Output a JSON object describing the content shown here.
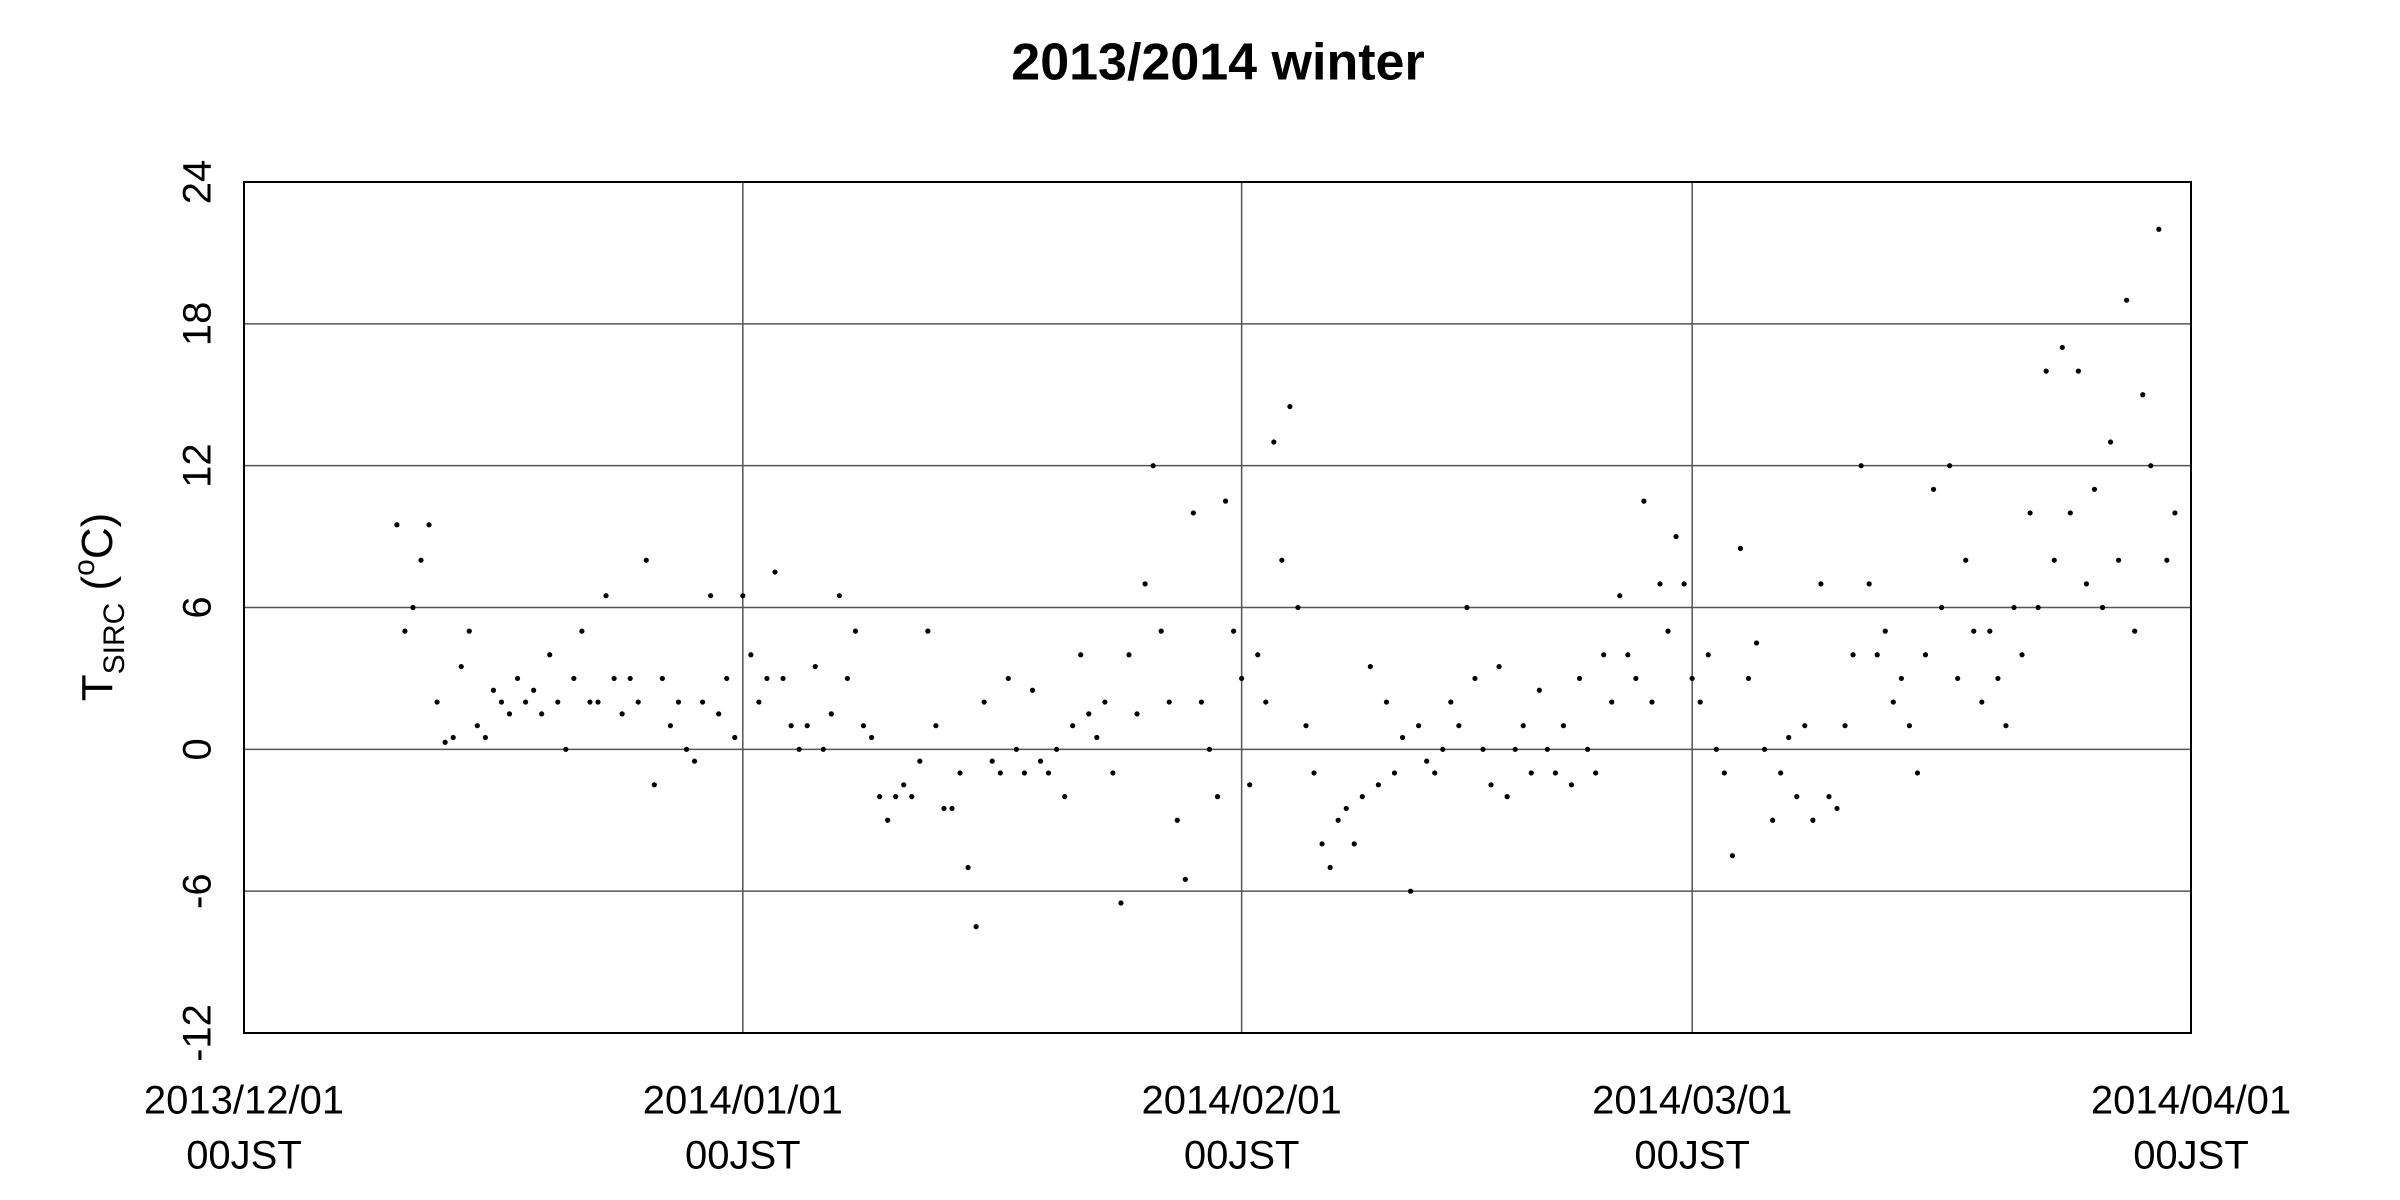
{
  "chart_data": {
    "type": "scatter",
    "title": "2013/2014 winter",
    "ylabel": [
      "T",
      "SIRC",
      " (",
      "o",
      "C)"
    ],
    "color": "#000000",
    "grid": true,
    "xlim": [
      "2013-12-01 00:00",
      "2014-04-01 00:00"
    ],
    "xticks": [
      {
        "value": "2013-12-01 00:00",
        "label": [
          "2013/12/01",
          "00JST"
        ]
      },
      {
        "value": "2014-01-01 00:00",
        "label": [
          "2014/01/01",
          "00JST"
        ]
      },
      {
        "value": "2014-02-01 00:00",
        "label": [
          "2014/02/01",
          "00JST"
        ]
      },
      {
        "value": "2014-03-01 00:00",
        "label": [
          "2014/03/01",
          "00JST"
        ]
      },
      {
        "value": "2014-04-01 00:00",
        "label": [
          "2014/04/01",
          "00JST"
        ]
      }
    ],
    "ylim": [
      -12,
      24
    ],
    "yticks": [
      -12,
      -6,
      0,
      6,
      12,
      18,
      24
    ],
    "x": [
      "2013-12-10 12:00",
      "2013-12-11 00:00",
      "2013-12-11 12:00",
      "2013-12-12 00:00",
      "2013-12-12 12:00",
      "2013-12-13 00:00",
      "2013-12-13 12:00",
      "2013-12-14 00:00",
      "2013-12-14 12:00",
      "2013-12-15 00:00",
      "2013-12-15 12:00",
      "2013-12-16 00:00",
      "2013-12-16 12:00",
      "2013-12-17 00:00",
      "2013-12-17 12:00",
      "2013-12-18 00:00",
      "2013-12-18 12:00",
      "2013-12-19 00:00",
      "2013-12-19 12:00",
      "2013-12-20 00:00",
      "2013-12-20 12:00",
      "2013-12-21 00:00",
      "2013-12-21 12:00",
      "2013-12-22 00:00",
      "2013-12-22 12:00",
      "2013-12-23 00:00",
      "2013-12-23 12:00",
      "2013-12-24 00:00",
      "2013-12-24 12:00",
      "2013-12-25 00:00",
      "2013-12-25 12:00",
      "2013-12-26 00:00",
      "2013-12-26 12:00",
      "2013-12-27 00:00",
      "2013-12-27 12:00",
      "2013-12-28 00:00",
      "2013-12-28 12:00",
      "2013-12-29 00:00",
      "2013-12-29 12:00",
      "2013-12-30 00:00",
      "2013-12-30 12:00",
      "2013-12-31 00:00",
      "2013-12-31 12:00",
      "2014-01-01 00:00",
      "2014-01-01 12:00",
      "2014-01-02 00:00",
      "2014-01-02 12:00",
      "2014-01-03 00:00",
      "2014-01-03 12:00",
      "2014-01-04 00:00",
      "2014-01-04 12:00",
      "2014-01-05 00:00",
      "2014-01-05 12:00",
      "2014-01-06 00:00",
      "2014-01-06 12:00",
      "2014-01-07 00:00",
      "2014-01-07 12:00",
      "2014-01-08 00:00",
      "2014-01-08 12:00",
      "2014-01-09 00:00",
      "2014-01-09 12:00",
      "2014-01-10 00:00",
      "2014-01-10 12:00",
      "2014-01-11 00:00",
      "2014-01-11 12:00",
      "2014-01-12 00:00",
      "2014-01-12 12:00",
      "2014-01-13 00:00",
      "2014-01-13 12:00",
      "2014-01-14 00:00",
      "2014-01-14 12:00",
      "2014-01-15 00:00",
      "2014-01-15 12:00",
      "2014-01-16 00:00",
      "2014-01-16 12:00",
      "2014-01-17 00:00",
      "2014-01-17 12:00",
      "2014-01-18 00:00",
      "2014-01-18 12:00",
      "2014-01-19 00:00",
      "2014-01-19 12:00",
      "2014-01-20 00:00",
      "2014-01-20 12:00",
      "2014-01-21 00:00",
      "2014-01-21 12:00",
      "2014-01-22 00:00",
      "2014-01-22 12:00",
      "2014-01-23 00:00",
      "2014-01-23 12:00",
      "2014-01-24 00:00",
      "2014-01-24 12:00",
      "2014-01-25 00:00",
      "2014-01-25 12:00",
      "2014-01-26 00:00",
      "2014-01-26 12:00",
      "2014-01-27 00:00",
      "2014-01-27 12:00",
      "2014-01-28 00:00",
      "2014-01-28 12:00",
      "2014-01-29 00:00",
      "2014-01-29 12:00",
      "2014-01-30 00:00",
      "2014-01-30 12:00",
      "2014-01-31 00:00",
      "2014-01-31 12:00",
      "2014-02-01 00:00",
      "2014-02-01 12:00",
      "2014-02-02 00:00",
      "2014-02-02 12:00",
      "2014-02-03 00:00",
      "2014-02-03 12:00",
      "2014-02-04 00:00",
      "2014-02-04 12:00",
      "2014-02-05 00:00",
      "2014-02-05 12:00",
      "2014-02-06 00:00",
      "2014-02-06 12:00",
      "2014-02-07 00:00",
      "2014-02-07 12:00",
      "2014-02-08 00:00",
      "2014-02-08 12:00",
      "2014-02-09 00:00",
      "2014-02-09 12:00",
      "2014-02-10 00:00",
      "2014-02-10 12:00",
      "2014-02-11 00:00",
      "2014-02-11 12:00",
      "2014-02-12 00:00",
      "2014-02-12 12:00",
      "2014-02-13 00:00",
      "2014-02-13 12:00",
      "2014-02-14 00:00",
      "2014-02-14 12:00",
      "2014-02-15 00:00",
      "2014-02-15 12:00",
      "2014-02-16 00:00",
      "2014-02-16 12:00",
      "2014-02-17 00:00",
      "2014-02-17 12:00",
      "2014-02-18 00:00",
      "2014-02-18 12:00",
      "2014-02-19 00:00",
      "2014-02-19 12:00",
      "2014-02-20 00:00",
      "2014-02-20 12:00",
      "2014-02-21 00:00",
      "2014-02-21 12:00",
      "2014-02-22 00:00",
      "2014-02-22 12:00",
      "2014-02-23 00:00",
      "2014-02-23 12:00",
      "2014-02-24 00:00",
      "2014-02-24 12:00",
      "2014-02-25 00:00",
      "2014-02-25 12:00",
      "2014-02-26 00:00",
      "2014-02-26 12:00",
      "2014-02-27 00:00",
      "2014-02-27 12:00",
      "2014-02-28 00:00",
      "2014-02-28 12:00",
      "2014-03-01 00:00",
      "2014-03-01 12:00",
      "2014-03-02 00:00",
      "2014-03-02 12:00",
      "2014-03-03 00:00",
      "2014-03-03 12:00",
      "2014-03-04 00:00",
      "2014-03-04 12:00",
      "2014-03-05 00:00",
      "2014-03-05 12:00",
      "2014-03-06 00:00",
      "2014-03-06 12:00",
      "2014-03-07 00:00",
      "2014-03-07 12:00",
      "2014-03-08 00:00",
      "2014-03-08 12:00",
      "2014-03-09 00:00",
      "2014-03-09 12:00",
      "2014-03-10 00:00",
      "2014-03-10 12:00",
      "2014-03-11 00:00",
      "2014-03-11 12:00",
      "2014-03-12 00:00",
      "2014-03-12 12:00",
      "2014-03-13 00:00",
      "2014-03-13 12:00",
      "2014-03-14 00:00",
      "2014-03-14 12:00",
      "2014-03-15 00:00",
      "2014-03-15 12:00",
      "2014-03-16 00:00",
      "2014-03-16 12:00",
      "2014-03-17 00:00",
      "2014-03-17 12:00",
      "2014-03-18 00:00",
      "2014-03-18 12:00",
      "2014-03-19 00:00",
      "2014-03-19 12:00",
      "2014-03-20 00:00",
      "2014-03-20 12:00",
      "2014-03-21 00:00",
      "2014-03-21 12:00",
      "2014-03-22 00:00",
      "2014-03-22 12:00",
      "2014-03-23 00:00",
      "2014-03-23 12:00",
      "2014-03-24 00:00",
      "2014-03-24 12:00",
      "2014-03-25 00:00",
      "2014-03-25 12:00",
      "2014-03-26 00:00",
      "2014-03-26 12:00",
      "2014-03-27 00:00",
      "2014-03-27 12:00",
      "2014-03-28 00:00",
      "2014-03-28 12:00",
      "2014-03-29 00:00",
      "2014-03-29 12:00",
      "2014-03-30 00:00",
      "2014-03-30 12:00",
      "2014-03-31 00:00"
    ],
    "values": [
      9.5,
      5,
      6,
      8,
      9.5,
      2,
      0.3,
      0.5,
      3.5,
      5,
      1,
      0.5,
      2.5,
      2,
      1.5,
      3,
      2,
      2.5,
      1.5,
      4,
      2,
      0,
      3,
      5,
      2,
      2,
      6.5,
      3,
      1.5,
      3,
      2,
      8,
      -1.5,
      3,
      1,
      2,
      0,
      -0.5,
      2,
      6.5,
      1.5,
      3,
      0.5,
      6.5,
      4,
      2,
      3,
      7.5,
      3,
      1,
      0,
      1,
      3.5,
      0,
      1.5,
      6.5,
      3,
      5,
      1,
      0.5,
      -2,
      -3,
      -2,
      -1.5,
      -2,
      -0.5,
      5,
      1,
      -2.5,
      -2.5,
      -1,
      -5,
      -7.5,
      2,
      -0.5,
      -1,
      3,
      0,
      -1,
      2.5,
      -0.5,
      -1,
      0,
      -2,
      1,
      4,
      1.5,
      0.5,
      2,
      -1,
      -6.5,
      4,
      1.5,
      7,
      12,
      5,
      2,
      -3,
      -5.5,
      10,
      2,
      0,
      -2,
      10.5,
      5,
      3,
      -1.5,
      4,
      2,
      13,
      8,
      14.5,
      6,
      1,
      -1,
      -4,
      -5,
      -3,
      -2.5,
      -4,
      -2,
      3.5,
      -1.5,
      2,
      -1,
      0.5,
      -6,
      1,
      -0.5,
      -1,
      0,
      2,
      1,
      6,
      3,
      0,
      -1.5,
      3.5,
      -2,
      0,
      1,
      -1,
      2.5,
      0,
      -1,
      1,
      -1.5,
      3,
      0,
      -1,
      4,
      2,
      6.5,
      4,
      3,
      10.5,
      2,
      7,
      5,
      9,
      7,
      3,
      2,
      4,
      0,
      -1,
      -4.5,
      8.5,
      3,
      4.5,
      0,
      -3,
      -1,
      0.5,
      -2,
      1,
      -3,
      7,
      -2,
      -2.5,
      1,
      4,
      12,
      7,
      4,
      5,
      2,
      3,
      1,
      -1,
      4,
      11,
      6,
      12,
      3,
      8,
      5,
      2,
      5,
      3,
      1,
      6,
      4,
      10,
      6,
      16,
      8,
      17,
      10,
      16,
      7,
      11,
      6,
      13,
      8,
      19,
      5,
      15,
      12,
      22,
      8,
      10
    ]
  }
}
